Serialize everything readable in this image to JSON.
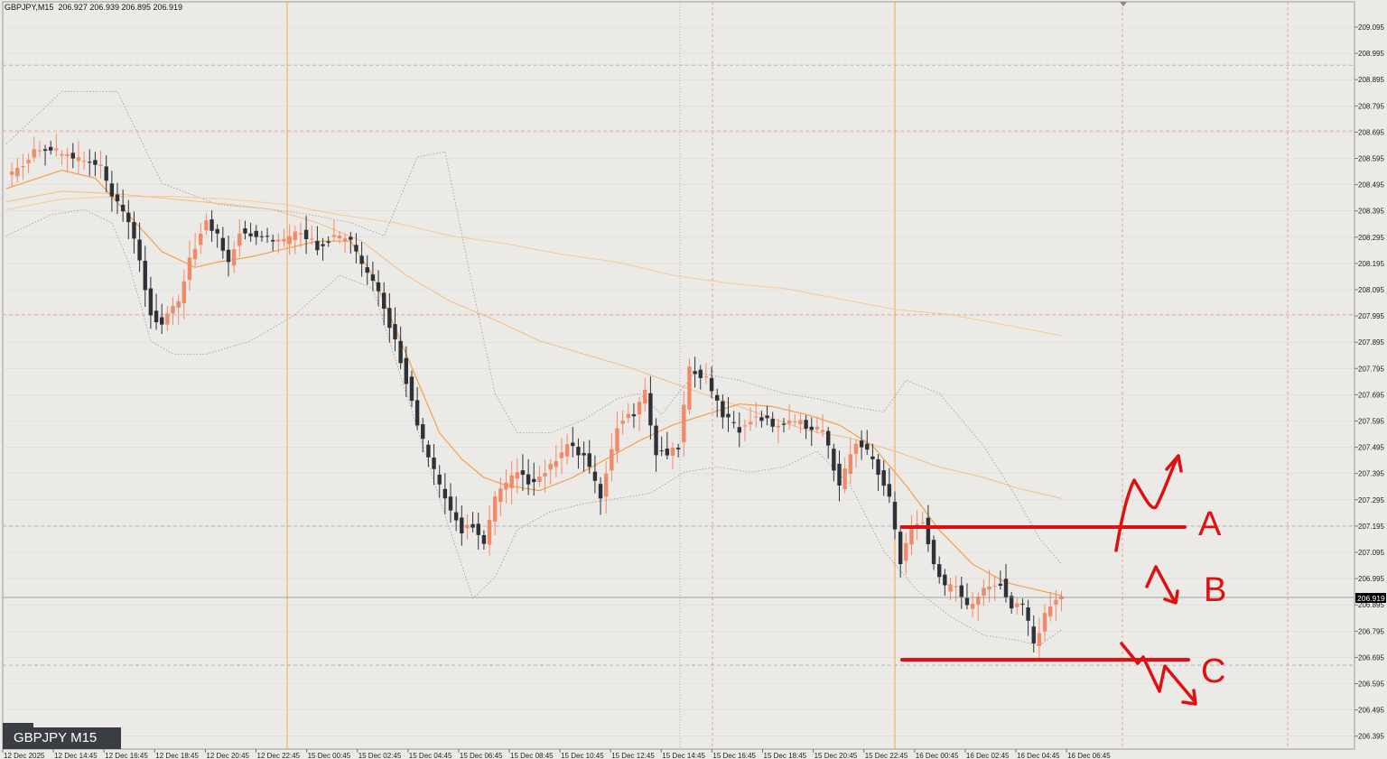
{
  "header": {
    "symbol": "GBPJPY,M15",
    "ohlc": "206.927 206.939 206.895 206.919"
  },
  "badge": {
    "label": "GBPJPY M15"
  },
  "annotations": {
    "A": "A",
    "B": "B",
    "C": "C"
  },
  "colors": {
    "background": "#eceae6",
    "bull": "#f08a68",
    "bear": "#2e3138",
    "ma": "#f0a050",
    "annotation": "#e01010",
    "bollinger": "#999999"
  },
  "chart_data": {
    "type": "candlestick",
    "symbol": "GBPJPY",
    "timeframe": "M15",
    "y_ticks": [
      "209.095",
      "208.995",
      "208.895",
      "208.795",
      "208.695",
      "208.595",
      "208.495",
      "208.395",
      "208.295",
      "208.195",
      "208.095",
      "207.995",
      "207.895",
      "207.795",
      "207.695",
      "207.595",
      "207.495",
      "207.395",
      "207.295",
      "207.195",
      "207.095",
      "206.995",
      "206.895",
      "206.795",
      "206.695",
      "206.595",
      "206.495",
      "206.395"
    ],
    "ylim": [
      206.35,
      209.13
    ],
    "current_price": "206.919",
    "x_ticks": [
      "12 Dec 2025",
      "12 Dec 14:45",
      "12 Dec 16:45",
      "12 Dec 18:45",
      "12 Dec 20:45",
      "12 Dec 22:45",
      "15 Dec 00:45",
      "15 Dec 02:45",
      "15 Dec 04:45",
      "15 Dec 06:45",
      "15 Dec 08:45",
      "15 Dec 10:45",
      "15 Dec 12:45",
      "15 Dec 14:45",
      "15 Dec 16:45",
      "15 Dec 18:45",
      "15 Dec 20:45",
      "15 Dec 22:45",
      "16 Dec 00:45",
      "16 Dec 02:45",
      "16 Dec 04:45",
      "16 Dec 06:45"
    ],
    "horizontal_levels": [
      208.95,
      208.7,
      208.0,
      207.195,
      206.665
    ],
    "candle_anchors": [
      [
        0,
        208.52
      ],
      [
        6,
        208.64
      ],
      [
        12,
        208.6
      ],
      [
        17,
        208.56
      ],
      [
        19,
        208.45
      ],
      [
        22,
        208.35
      ],
      [
        24,
        208.2
      ],
      [
        26,
        208.0
      ],
      [
        28,
        207.96
      ],
      [
        31,
        208.05
      ],
      [
        33,
        208.22
      ],
      [
        36,
        208.35
      ],
      [
        38,
        208.3
      ],
      [
        40,
        208.2
      ],
      [
        42,
        208.32
      ],
      [
        46,
        208.3
      ],
      [
        50,
        208.28
      ],
      [
        53,
        208.32
      ],
      [
        56,
        208.26
      ],
      [
        59,
        208.3
      ],
      [
        62,
        208.28
      ],
      [
        65,
        208.15
      ],
      [
        67,
        208.08
      ],
      [
        70,
        207.9
      ],
      [
        72,
        207.75
      ],
      [
        74,
        207.58
      ],
      [
        76,
        207.45
      ],
      [
        78,
        207.35
      ],
      [
        80,
        207.25
      ],
      [
        82,
        207.18
      ],
      [
        84,
        207.2
      ],
      [
        86,
        207.12
      ],
      [
        88,
        207.3
      ],
      [
        90,
        207.35
      ],
      [
        92,
        207.4
      ],
      [
        95,
        207.35
      ],
      [
        98,
        207.42
      ],
      [
        101,
        207.5
      ],
      [
        104,
        207.46
      ],
      [
        107,
        207.3
      ],
      [
        110,
        207.58
      ],
      [
        113,
        207.62
      ],
      [
        115,
        207.7
      ],
      [
        117,
        207.48
      ],
      [
        119,
        207.47
      ],
      [
        121,
        207.5
      ],
      [
        123,
        207.8
      ],
      [
        126,
        207.75
      ],
      [
        129,
        207.62
      ],
      [
        132,
        207.56
      ],
      [
        135,
        207.62
      ],
      [
        138,
        207.58
      ],
      [
        141,
        207.6
      ],
      [
        144,
        207.58
      ],
      [
        147,
        207.56
      ],
      [
        150,
        207.35
      ],
      [
        153,
        207.52
      ],
      [
        156,
        207.45
      ],
      [
        159,
        207.3
      ],
      [
        161,
        207.05
      ],
      [
        163,
        207.2
      ],
      [
        165,
        207.22
      ],
      [
        167,
        207.05
      ],
      [
        169,
        206.96
      ],
      [
        171,
        206.98
      ],
      [
        173,
        206.88
      ],
      [
        175,
        206.92
      ],
      [
        177,
        206.98
      ],
      [
        179,
        206.98
      ],
      [
        181,
        206.88
      ],
      [
        183,
        206.9
      ],
      [
        185,
        206.75
      ],
      [
        187,
        206.85
      ],
      [
        189,
        206.92
      ],
      [
        190,
        206.919
      ]
    ],
    "bollinger_upper_anchors": [
      [
        0,
        208.65
      ],
      [
        10,
        208.85
      ],
      [
        20,
        208.85
      ],
      [
        28,
        208.5
      ],
      [
        38,
        208.42
      ],
      [
        48,
        208.4
      ],
      [
        55,
        208.38
      ],
      [
        62,
        208.35
      ],
      [
        68,
        208.3
      ],
      [
        74,
        208.6
      ],
      [
        79,
        208.62
      ],
      [
        84,
        208.1
      ],
      [
        88,
        207.7
      ],
      [
        92,
        207.55
      ],
      [
        98,
        207.55
      ],
      [
        104,
        207.6
      ],
      [
        110,
        207.68
      ],
      [
        114,
        207.7
      ],
      [
        118,
        207.62
      ],
      [
        124,
        207.78
      ],
      [
        132,
        207.75
      ],
      [
        140,
        207.7
      ],
      [
        146,
        207.68
      ],
      [
        152,
        207.65
      ],
      [
        158,
        207.63
      ],
      [
        162,
        207.75
      ],
      [
        168,
        207.7
      ],
      [
        176,
        207.5
      ],
      [
        182,
        207.3
      ],
      [
        186,
        207.15
      ],
      [
        190,
        207.05
      ]
    ],
    "bollinger_lower_anchors": [
      [
        0,
        208.3
      ],
      [
        8,
        208.38
      ],
      [
        14,
        208.4
      ],
      [
        19,
        208.35
      ],
      [
        22,
        208.2
      ],
      [
        26,
        207.9
      ],
      [
        30,
        207.85
      ],
      [
        36,
        207.85
      ],
      [
        44,
        207.9
      ],
      [
        52,
        208.0
      ],
      [
        60,
        208.15
      ],
      [
        66,
        208.1
      ],
      [
        72,
        207.7
      ],
      [
        78,
        207.3
      ],
      [
        84,
        206.92
      ],
      [
        88,
        207.0
      ],
      [
        92,
        207.18
      ],
      [
        98,
        207.25
      ],
      [
        104,
        207.28
      ],
      [
        110,
        207.3
      ],
      [
        116,
        207.32
      ],
      [
        122,
        207.4
      ],
      [
        128,
        207.42
      ],
      [
        134,
        207.4
      ],
      [
        140,
        207.42
      ],
      [
        146,
        207.48
      ],
      [
        152,
        207.35
      ],
      [
        158,
        207.1
      ],
      [
        164,
        206.95
      ],
      [
        170,
        206.85
      ],
      [
        176,
        206.78
      ],
      [
        182,
        206.76
      ],
      [
        186,
        206.74
      ],
      [
        190,
        206.8
      ]
    ],
    "ma_fast_anchors": [
      [
        0,
        208.48
      ],
      [
        10,
        208.55
      ],
      [
        16,
        208.52
      ],
      [
        22,
        208.38
      ],
      [
        28,
        208.24
      ],
      [
        34,
        208.18
      ],
      [
        38,
        208.2
      ],
      [
        44,
        208.22
      ],
      [
        50,
        208.25
      ],
      [
        56,
        208.28
      ],
      [
        62,
        208.28
      ],
      [
        66,
        208.15
      ],
      [
        70,
        207.95
      ],
      [
        74,
        207.75
      ],
      [
        78,
        207.55
      ],
      [
        82,
        207.45
      ],
      [
        86,
        207.38
      ],
      [
        90,
        207.35
      ],
      [
        96,
        207.33
      ],
      [
        102,
        207.38
      ],
      [
        108,
        207.45
      ],
      [
        114,
        207.52
      ],
      [
        120,
        207.58
      ],
      [
        126,
        207.62
      ],
      [
        132,
        207.66
      ],
      [
        138,
        207.65
      ],
      [
        144,
        207.62
      ],
      [
        150,
        207.58
      ],
      [
        156,
        207.5
      ],
      [
        162,
        207.35
      ],
      [
        168,
        207.18
      ],
      [
        174,
        207.05
      ],
      [
        180,
        206.98
      ],
      [
        186,
        206.95
      ],
      [
        190,
        206.93
      ]
    ],
    "ma_mid_anchors": [
      [
        0,
        208.43
      ],
      [
        10,
        208.47
      ],
      [
        20,
        208.46
      ],
      [
        30,
        208.44
      ],
      [
        40,
        208.42
      ],
      [
        48,
        208.4
      ],
      [
        56,
        208.35
      ],
      [
        64,
        208.28
      ],
      [
        72,
        208.15
      ],
      [
        80,
        208.05
      ],
      [
        88,
        207.98
      ],
      [
        96,
        207.9
      ],
      [
        104,
        207.85
      ],
      [
        112,
        207.8
      ],
      [
        120,
        207.74
      ],
      [
        128,
        207.68
      ],
      [
        136,
        207.62
      ],
      [
        144,
        207.56
      ],
      [
        152,
        207.53
      ],
      [
        160,
        207.48
      ],
      [
        168,
        207.42
      ],
      [
        176,
        207.38
      ],
      [
        182,
        207.34
      ],
      [
        190,
        207.3
      ]
    ],
    "ma_slow_anchors": [
      [
        0,
        208.4
      ],
      [
        10,
        208.44
      ],
      [
        20,
        208.45
      ],
      [
        30,
        208.45
      ],
      [
        40,
        208.44
      ],
      [
        50,
        208.42
      ],
      [
        60,
        208.38
      ],
      [
        70,
        208.35
      ],
      [
        80,
        208.3
      ],
      [
        90,
        208.27
      ],
      [
        100,
        208.23
      ],
      [
        110,
        208.2
      ],
      [
        120,
        208.15
      ],
      [
        130,
        208.12
      ],
      [
        140,
        208.1
      ],
      [
        150,
        208.06
      ],
      [
        160,
        208.02
      ],
      [
        170,
        208.0
      ],
      [
        180,
        207.96
      ],
      [
        190,
        207.92
      ]
    ]
  }
}
